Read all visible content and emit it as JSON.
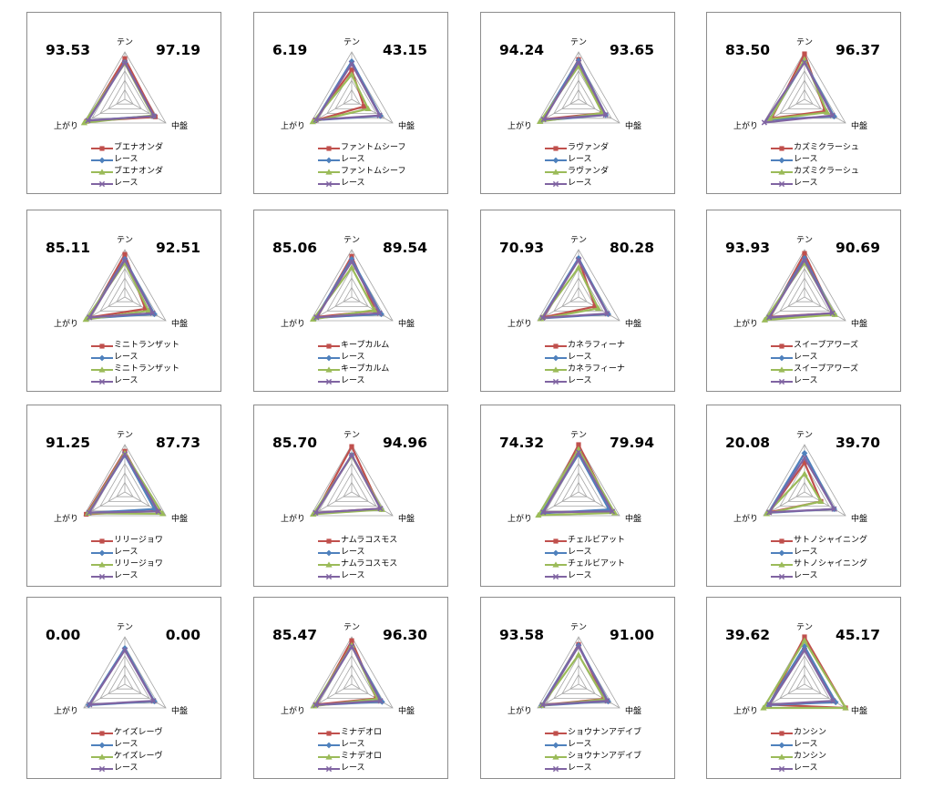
{
  "axes": [
    "テン",
    "中盤",
    "上がり"
  ],
  "colors": {
    "horse": "#c0504d",
    "race": "#4f81bd",
    "horse2": "#9bbb59",
    "race2": "#8064a2"
  },
  "legend_race_label": "レース",
  "chart_data": [
    {
      "type": "radar",
      "horse": "ブエナオンダ",
      "left_value": "93.53",
      "right_value": "97.19",
      "axes": [
        "テン",
        "中盤",
        "上がり"
      ],
      "series": [
        {
          "name": "ブエナオンダ",
          "values": [
            0.86,
            0.74,
            0.93
          ]
        },
        {
          "name": "レース",
          "values": [
            0.78,
            0.7,
            0.9
          ]
        },
        {
          "name": "ブエナオンダ",
          "values": [
            0.76,
            0.68,
            0.99
          ]
        },
        {
          "name": "レース",
          "values": [
            0.78,
            0.71,
            0.9
          ]
        }
      ]
    },
    {
      "type": "radar",
      "horse": "ファントムシーフ",
      "left_value": "6.19",
      "right_value": "43.15",
      "axes": [
        "テン",
        "中盤",
        "上がり"
      ],
      "series": [
        {
          "name": "ファントムシーフ",
          "values": [
            0.62,
            0.3,
            0.9
          ]
        },
        {
          "name": "レース",
          "values": [
            0.8,
            0.7,
            0.88
          ]
        },
        {
          "name": "ファントムシーフ",
          "values": [
            0.52,
            0.4,
            0.95
          ]
        },
        {
          "name": "レース",
          "values": [
            0.75,
            0.68,
            0.87
          ]
        }
      ]
    },
    {
      "type": "radar",
      "horse": "ラヴァンダ",
      "left_value": "94.24",
      "right_value": "93.65",
      "axes": [
        "テン",
        "中盤",
        "上がり"
      ],
      "series": [
        {
          "name": "ラヴァンダ",
          "values": [
            0.84,
            0.58,
            0.84
          ]
        },
        {
          "name": "レース",
          "values": [
            0.82,
            0.66,
            0.9
          ]
        },
        {
          "name": "ラヴァンダ",
          "values": [
            0.7,
            0.58,
            0.94
          ]
        },
        {
          "name": "レース",
          "values": [
            0.78,
            0.66,
            0.85
          ]
        }
      ]
    },
    {
      "type": "radar",
      "horse": "カズミクラーシュ",
      "left_value": "83.50",
      "right_value": "96.37",
      "axes": [
        "テン",
        "中盤",
        "上がり"
      ],
      "series": [
        {
          "name": "カズミクラーシュ",
          "values": [
            0.96,
            0.5,
            0.8
          ]
        },
        {
          "name": "レース",
          "values": [
            0.8,
            0.72,
            0.86
          ]
        },
        {
          "name": "カズミクラーシュ",
          "values": [
            0.84,
            0.55,
            0.84
          ]
        },
        {
          "name": "レース",
          "values": [
            0.78,
            0.68,
            0.98
          ]
        }
      ]
    },
    {
      "type": "radar",
      "horse": "ミニトランザット",
      "left_value": "85.11",
      "right_value": "92.51",
      "axes": [
        "テン",
        "中盤",
        "上がり"
      ],
      "series": [
        {
          "name": "ミニトランザット",
          "values": [
            0.9,
            0.5,
            0.86
          ]
        },
        {
          "name": "レース",
          "values": [
            0.8,
            0.72,
            0.9
          ]
        },
        {
          "name": "ミニトランザット",
          "values": [
            0.72,
            0.58,
            0.95
          ]
        },
        {
          "name": "レース",
          "values": [
            0.78,
            0.68,
            0.86
          ]
        }
      ]
    },
    {
      "type": "radar",
      "horse": "キープカルム",
      "left_value": "85.06",
      "right_value": "89.54",
      "axes": [
        "テン",
        "中盤",
        "上がり"
      ],
      "series": [
        {
          "name": "キープカルム",
          "values": [
            0.86,
            0.58,
            0.84
          ]
        },
        {
          "name": "レース",
          "values": [
            0.8,
            0.72,
            0.88
          ]
        },
        {
          "name": "キープカルム",
          "values": [
            0.62,
            0.55,
            0.94
          ]
        },
        {
          "name": "レース",
          "values": [
            0.75,
            0.68,
            0.86
          ]
        }
      ]
    },
    {
      "type": "radar",
      "horse": "カネラフィーナ",
      "left_value": "70.93",
      "right_value": "80.28",
      "axes": [
        "テン",
        "中盤",
        "上がり"
      ],
      "series": [
        {
          "name": "カネラフィーナ",
          "values": [
            0.8,
            0.4,
            0.86
          ]
        },
        {
          "name": "レース",
          "values": [
            0.82,
            0.72,
            0.9
          ]
        },
        {
          "name": "カネラフィーナ",
          "values": [
            0.62,
            0.48,
            0.92
          ]
        },
        {
          "name": "レース",
          "values": [
            0.78,
            0.7,
            0.88
          ]
        }
      ]
    },
    {
      "type": "radar",
      "horse": "スイープアワーズ",
      "left_value": "93.93",
      "right_value": "90.69",
      "axes": [
        "テン",
        "中盤",
        "上がり"
      ],
      "series": [
        {
          "name": "スイープアワーズ",
          "values": [
            0.92,
            0.68,
            0.84
          ]
        },
        {
          "name": "レース",
          "values": [
            0.82,
            0.72,
            0.9
          ]
        },
        {
          "name": "スイープアワーズ",
          "values": [
            0.72,
            0.74,
            0.97
          ]
        },
        {
          "name": "レース",
          "values": [
            0.78,
            0.68,
            0.86
          ]
        }
      ]
    },
    {
      "type": "radar",
      "horse": "リリージョワ",
      "left_value": "91.25",
      "right_value": "87.73",
      "axes": [
        "テン",
        "中盤",
        "上がり"
      ],
      "series": [
        {
          "name": "リリージョワ",
          "values": [
            0.86,
            0.8,
            0.94
          ]
        },
        {
          "name": "レース",
          "values": [
            0.78,
            0.72,
            0.88
          ]
        },
        {
          "name": "リリージョワ",
          "values": [
            0.82,
            0.92,
            0.9
          ]
        },
        {
          "name": "レース",
          "values": [
            0.8,
            0.82,
            0.87
          ]
        }
      ]
    },
    {
      "type": "radar",
      "horse": "ナムラコスモス",
      "left_value": "85.70",
      "right_value": "94.96",
      "axes": [
        "テン",
        "中盤",
        "上がり"
      ],
      "series": [
        {
          "name": "ナムラコスモス",
          "values": [
            0.96,
            0.7,
            0.88
          ]
        },
        {
          "name": "レース",
          "values": [
            0.78,
            0.72,
            0.9
          ]
        },
        {
          "name": "ナムラコスモス",
          "values": [
            0.76,
            0.74,
            0.94
          ]
        },
        {
          "name": "レース",
          "values": [
            0.78,
            0.7,
            0.88
          ]
        }
      ]
    },
    {
      "type": "radar",
      "horse": "チェルビアット",
      "left_value": "74.32",
      "right_value": "79.94",
      "axes": [
        "テン",
        "中盤",
        "上がり"
      ],
      "series": [
        {
          "name": "チェルビアット",
          "values": [
            1.0,
            0.82,
            0.86
          ]
        },
        {
          "name": "レース",
          "values": [
            0.8,
            0.74,
            0.9
          ]
        },
        {
          "name": "チェルビアット",
          "values": [
            0.9,
            0.88,
            0.98
          ]
        },
        {
          "name": "レース",
          "values": [
            0.84,
            0.82,
            0.86
          ]
        }
      ]
    },
    {
      "type": "radar",
      "horse": "サトノシャイニング",
      "left_value": "20.08",
      "right_value": "39.70",
      "axes": [
        "テン",
        "中盤",
        "上がり"
      ],
      "series": [
        {
          "name": "サトノシャイニング",
          "values": [
            0.62,
            0.4,
            0.86
          ]
        },
        {
          "name": "レース",
          "values": [
            0.82,
            0.72,
            0.88
          ]
        },
        {
          "name": "サトノシャイニング",
          "values": [
            0.38,
            0.4,
            0.92
          ]
        },
        {
          "name": "レース",
          "values": [
            0.72,
            0.72,
            0.86
          ]
        }
      ]
    },
    {
      "type": "radar",
      "horse": "ケイズレーヴ",
      "left_value": "0.00",
      "right_value": "0.00",
      "axes": [
        "テン",
        "中盤",
        "上がり"
      ],
      "series": [
        {
          "name": "ケイズレーヴ",
          "values": [
            0.0,
            0.0,
            0.0
          ]
        },
        {
          "name": "レース",
          "values": [
            0.76,
            0.72,
            0.88
          ]
        },
        {
          "name": "ケイズレーヴ",
          "values": [
            0.0,
            0.0,
            0.0
          ]
        },
        {
          "name": "レース",
          "values": [
            0.72,
            0.7,
            0.86
          ]
        }
      ]
    },
    {
      "type": "radar",
      "horse": "ミナデオロ",
      "left_value": "85.47",
      "right_value": "96.30",
      "axes": [
        "テン",
        "中盤",
        "上がり"
      ],
      "series": [
        {
          "name": "ミナデオロ",
          "values": [
            0.92,
            0.6,
            0.86
          ]
        },
        {
          "name": "レース",
          "values": [
            0.8,
            0.74,
            0.88
          ]
        },
        {
          "name": "ミナデオロ",
          "values": [
            0.82,
            0.62,
            0.92
          ]
        },
        {
          "name": "レース",
          "values": [
            0.8,
            0.7,
            0.88
          ]
        }
      ]
    },
    {
      "type": "radar",
      "horse": "ショウナンアデイブ",
      "left_value": "93.58",
      "right_value": "91.00",
      "axes": [
        "テン",
        "中盤",
        "上がり"
      ],
      "series": [
        {
          "name": "ショウナンアデイブ",
          "values": [
            0.84,
            0.62,
            0.88
          ]
        },
        {
          "name": "レース",
          "values": [
            0.82,
            0.72,
            0.9
          ]
        },
        {
          "name": "ショウナンアデイブ",
          "values": [
            0.62,
            0.64,
            0.9
          ]
        },
        {
          "name": "レース",
          "values": [
            0.8,
            0.7,
            0.88
          ]
        }
      ]
    },
    {
      "type": "radar",
      "horse": "カンシン",
      "left_value": "39.62",
      "right_value": "45.17",
      "axes": [
        "テン",
        "中盤",
        "上がり"
      ],
      "series": [
        {
          "name": "カンシン",
          "values": [
            1.0,
            1.0,
            0.86
          ]
        },
        {
          "name": "レース",
          "values": [
            0.8,
            0.76,
            0.88
          ]
        },
        {
          "name": "カンシン",
          "values": [
            0.92,
            1.0,
            1.0
          ]
        },
        {
          "name": "レース",
          "values": [
            0.72,
            0.7,
            0.86
          ]
        }
      ]
    }
  ]
}
